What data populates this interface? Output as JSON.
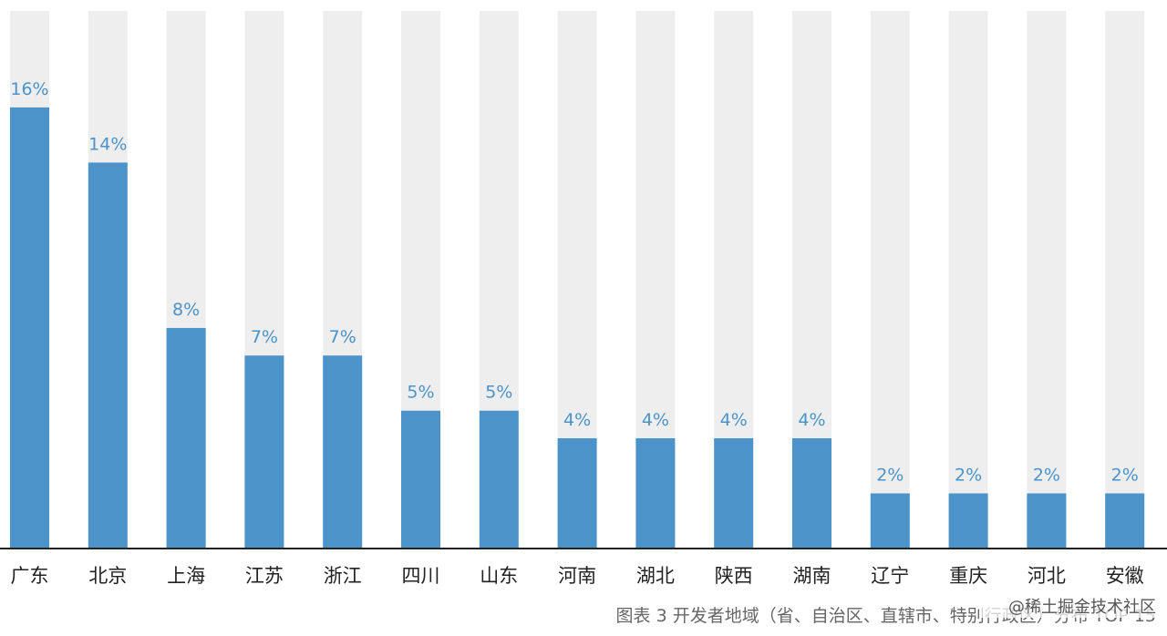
{
  "chart_data": {
    "type": "bar",
    "caption": "图表 3  开发者地域（省、自治区、直辖市、特别行政区）分布 TOP 15",
    "categories": [
      "广东",
      "北京",
      "上海",
      "江苏",
      "浙江",
      "四川",
      "山东",
      "河南",
      "湖北",
      "陕西",
      "湖南",
      "辽宁",
      "重庆",
      "河北",
      "安徽"
    ],
    "values": [
      16,
      14,
      8,
      7,
      7,
      5,
      5,
      4,
      4,
      4,
      4,
      2,
      2,
      2,
      2
    ],
    "value_labels": [
      "16%",
      "14%",
      "8%",
      "7%",
      "7%",
      "5%",
      "5%",
      "4%",
      "4%",
      "4%",
      "4%",
      "2%",
      "2%",
      "2%",
      "2%"
    ],
    "unit": "%",
    "ylim": [
      0,
      19.5
    ],
    "grid": false,
    "legend": "none",
    "colors": {
      "bar": "#4b93c8",
      "background_bar": "#eeeeef",
      "value_label": "#4b93c8",
      "axis": "#222222"
    }
  },
  "watermark": "@稀土掘金技术社区"
}
